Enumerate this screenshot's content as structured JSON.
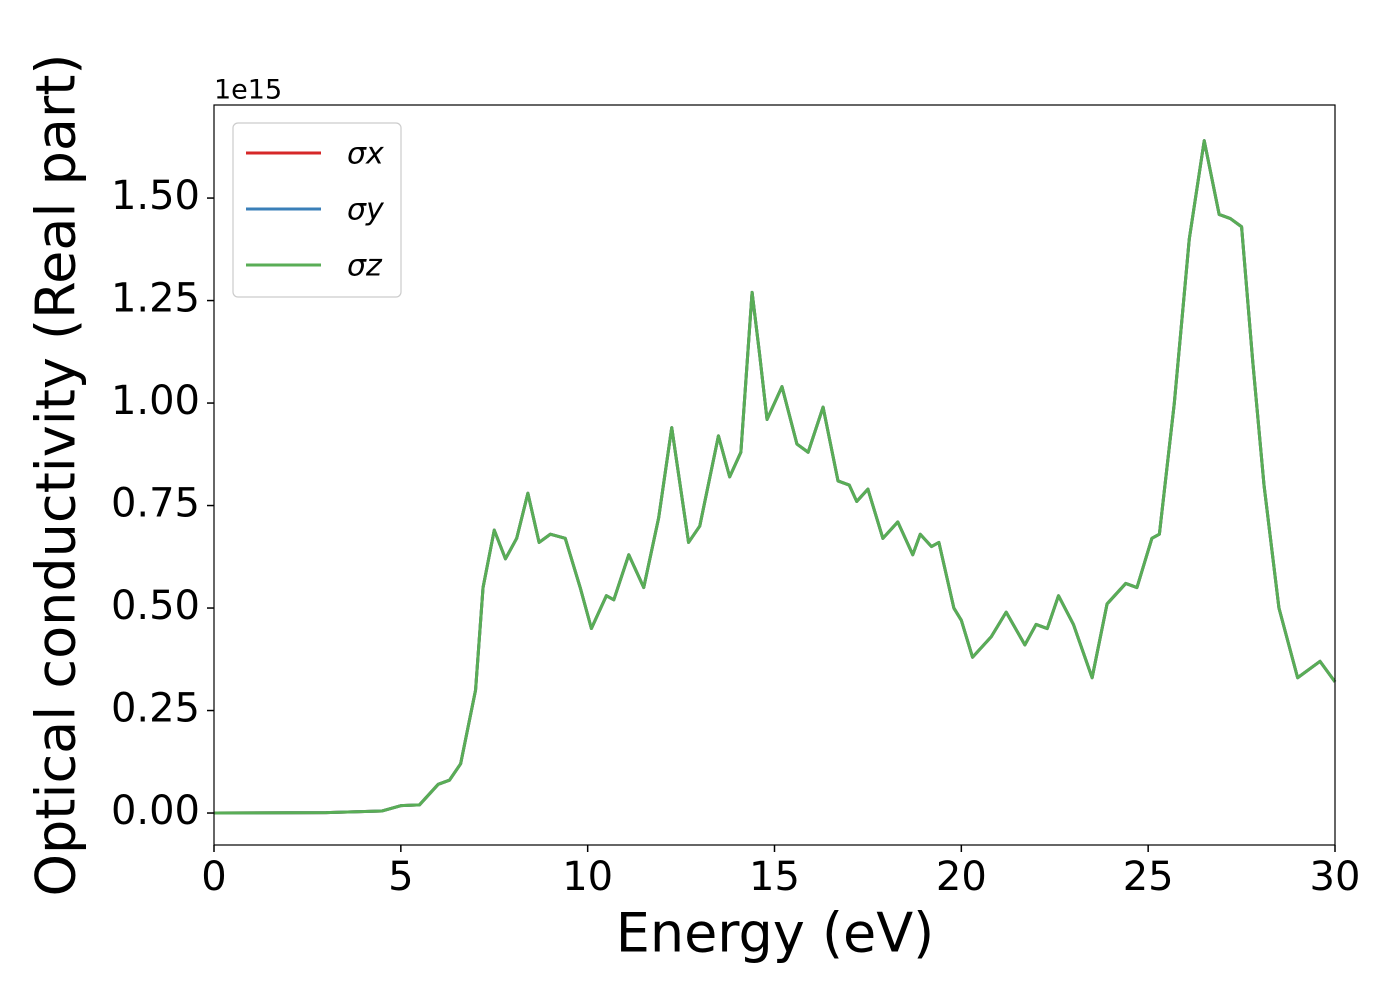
{
  "chart_data": {
    "type": "line",
    "xlabel": "Energy (eV)",
    "ylabel": "Optical conductivity (Real part)",
    "y_offset_label": "1e15",
    "x": [
      0,
      3,
      4.5,
      5,
      5.5,
      6,
      6.3,
      6.6,
      7,
      7.2,
      7.5,
      7.8,
      8.1,
      8.4,
      8.7,
      9.0,
      9.4,
      9.8,
      10.1,
      10.5,
      10.7,
      11.1,
      11.5,
      11.9,
      12.25,
      12.7,
      13.0,
      13.5,
      13.8,
      14.1,
      14.4,
      14.6,
      14.8,
      15.2,
      15.6,
      15.9,
      16.3,
      16.7,
      17.0,
      17.2,
      17.5,
      17.9,
      18.3,
      18.7,
      18.9,
      19.2,
      19.4,
      19.8,
      20.0,
      20.3,
      20.8,
      21.2,
      21.7,
      22.0,
      22.3,
      22.6,
      23.0,
      23.5,
      23.9,
      24.4,
      24.7,
      25.1,
      25.3,
      25.7,
      26.1,
      26.5,
      26.9,
      27.2,
      27.5,
      27.8,
      28.1,
      28.5,
      29.0,
      29.6,
      30.0
    ],
    "series": [
      {
        "name": "σx",
        "color": "#d62728",
        "values": [
          0,
          0.001,
          0.005,
          0.018,
          0.02,
          0.07,
          0.08,
          0.12,
          0.3,
          0.55,
          0.69,
          0.62,
          0.67,
          0.78,
          0.66,
          0.68,
          0.67,
          0.55,
          0.45,
          0.53,
          0.52,
          0.63,
          0.55,
          0.72,
          0.94,
          0.66,
          0.7,
          0.92,
          0.82,
          0.88,
          1.27,
          1.12,
          0.96,
          1.04,
          0.9,
          0.88,
          0.99,
          0.81,
          0.8,
          0.76,
          0.79,
          0.67,
          0.71,
          0.63,
          0.68,
          0.65,
          0.66,
          0.5,
          0.47,
          0.38,
          0.43,
          0.49,
          0.41,
          0.46,
          0.45,
          0.53,
          0.46,
          0.33,
          0.51,
          0.56,
          0.55,
          0.67,
          0.68,
          1.0,
          1.4,
          1.64,
          1.46,
          1.45,
          1.43,
          1.1,
          0.8,
          0.5,
          0.33,
          0.37,
          0.32
        ]
      },
      {
        "name": "σy",
        "color": "#3a7fb8",
        "values": [
          0,
          0.001,
          0.005,
          0.018,
          0.02,
          0.07,
          0.08,
          0.12,
          0.3,
          0.55,
          0.69,
          0.62,
          0.67,
          0.78,
          0.66,
          0.68,
          0.67,
          0.55,
          0.45,
          0.53,
          0.52,
          0.63,
          0.55,
          0.72,
          0.94,
          0.66,
          0.7,
          0.92,
          0.82,
          0.88,
          1.27,
          1.12,
          0.96,
          1.04,
          0.9,
          0.88,
          0.99,
          0.81,
          0.8,
          0.76,
          0.79,
          0.67,
          0.71,
          0.63,
          0.68,
          0.65,
          0.66,
          0.5,
          0.47,
          0.38,
          0.43,
          0.49,
          0.41,
          0.46,
          0.45,
          0.53,
          0.46,
          0.33,
          0.51,
          0.56,
          0.55,
          0.67,
          0.68,
          1.0,
          1.4,
          1.64,
          1.46,
          1.45,
          1.43,
          1.1,
          0.8,
          0.5,
          0.33,
          0.37,
          0.32
        ]
      },
      {
        "name": "σz",
        "color": "#59ad56",
        "values": [
          0,
          0.001,
          0.005,
          0.018,
          0.02,
          0.07,
          0.08,
          0.12,
          0.3,
          0.55,
          0.69,
          0.62,
          0.67,
          0.78,
          0.66,
          0.68,
          0.67,
          0.55,
          0.45,
          0.53,
          0.52,
          0.63,
          0.55,
          0.72,
          0.94,
          0.66,
          0.7,
          0.92,
          0.82,
          0.88,
          1.27,
          1.12,
          0.96,
          1.04,
          0.9,
          0.88,
          0.99,
          0.81,
          0.8,
          0.76,
          0.79,
          0.67,
          0.71,
          0.63,
          0.68,
          0.65,
          0.66,
          0.5,
          0.47,
          0.38,
          0.43,
          0.49,
          0.41,
          0.46,
          0.45,
          0.53,
          0.46,
          0.33,
          0.51,
          0.56,
          0.55,
          0.67,
          0.68,
          1.0,
          1.4,
          1.64,
          1.46,
          1.45,
          1.43,
          1.1,
          0.8,
          0.5,
          0.33,
          0.37,
          0.32
        ]
      }
    ],
    "xlim": [
      0,
      30
    ],
    "xticks": [
      0,
      5,
      10,
      15,
      20,
      25,
      30
    ],
    "ylim": [
      -0.078,
      1.727
    ],
    "yticks": [
      {
        "value": 0,
        "label": "0.00"
      },
      {
        "value": 0.25,
        "label": "0.25"
      },
      {
        "value": 0.5,
        "label": "0.50"
      },
      {
        "value": 0.75,
        "label": "0.75"
      },
      {
        "value": 1.0,
        "label": "1.00"
      },
      {
        "value": 1.25,
        "label": "1.25"
      },
      {
        "value": 1.5,
        "label": "1.50"
      }
    ],
    "legend": "upper left",
    "grid": false
  }
}
